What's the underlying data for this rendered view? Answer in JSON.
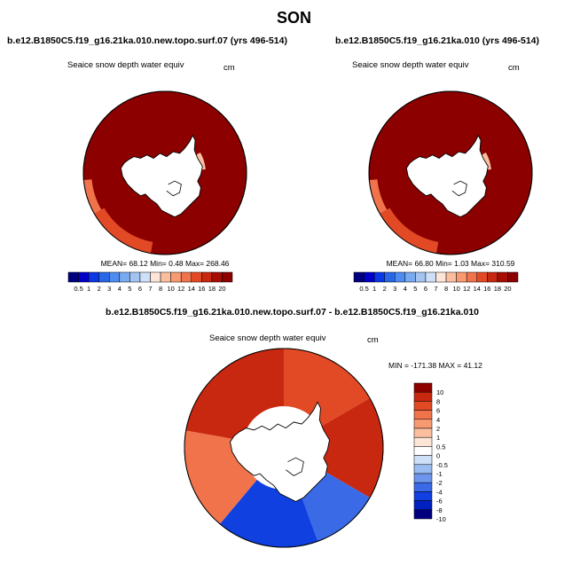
{
  "page": {
    "title": "SON"
  },
  "colors": {
    "land": "#ffffff",
    "outline": "#000000",
    "abs_scale": [
      "#00007f",
      "#0000c8",
      "#0a38e6",
      "#2766e6",
      "#4f8cf0",
      "#79aaf0",
      "#a3c4f0",
      "#cde0f7",
      "#fde5d8",
      "#fbbfa0",
      "#f79a72",
      "#f0734b",
      "#e24a26",
      "#c82810",
      "#a80d03",
      "#8c0000"
    ],
    "diff_scale": [
      "#00007f",
      "#0020bf",
      "#1040e0",
      "#3a6ae6",
      "#6d95eb",
      "#9bbcf0",
      "#cde0f7",
      "#ffffff",
      "#fde5d8",
      "#fbbfa0",
      "#f79a72",
      "#f0734b",
      "#e24a26",
      "#c82810",
      "#8c0000"
    ]
  },
  "panels": [
    {
      "id": "left",
      "case_title": "b.e12.B1850C5.f19_g16.21ka.010.new.topo.surf.07 (yrs 496-514)",
      "variable": "Seaice snow depth water equiv",
      "units": "cm",
      "stats": {
        "mean": "68.12",
        "min": "0.48",
        "max": "268.46",
        "text": "MEAN=  68.12  Min=   0.48  Max= 268.46"
      },
      "colorbar_labels": [
        "0.5",
        "1",
        "2",
        "3",
        "4",
        "5",
        "6",
        "7",
        "8",
        "10",
        "12",
        "14",
        "16",
        "18",
        "20"
      ]
    },
    {
      "id": "right",
      "case_title": "b.e12.B1850C5.f19_g16.21ka.010 (yrs 496-514)",
      "variable": "Seaice snow depth water equiv",
      "units": "cm",
      "stats": {
        "mean": "66.80",
        "min": "1.03",
        "max": "310.59",
        "text": "MEAN=  66.80  Min=   1.03  Max= 310.59"
      },
      "colorbar_labels": [
        "0.5",
        "1",
        "2",
        "3",
        "4",
        "5",
        "6",
        "7",
        "8",
        "10",
        "12",
        "14",
        "16",
        "18",
        "20"
      ]
    }
  ],
  "difference": {
    "title": "b.e12.B1850C5.f19_g16.21ka.010.new.topo.surf.07 - b.e12.B1850C5.f19_g16.21ka.010",
    "variable": "Seaice snow depth water equiv",
    "units": "cm",
    "stats": {
      "min": "-171.38",
      "max": "41.12",
      "text": "MIN = -171.38 MAX =  41.12"
    },
    "colorbar_labels": [
      "10",
      "8",
      "6",
      "4",
      "2",
      "1",
      "0.5",
      "0",
      "-0.5",
      "-1",
      "-2",
      "-4",
      "-6",
      "-8",
      "-10"
    ]
  },
  "chart_data": [
    {
      "type": "heatmap",
      "projection": "south-polar-stereographic",
      "title": "b.e12.B1850C5.f19_g16.21ka.010.new.topo.surf.07 (yrs 496-514)",
      "variable": "Seaice snow depth water equiv",
      "units": "cm",
      "mean": 68.12,
      "min": 0.48,
      "max": 268.46,
      "levels": [
        0.5,
        1,
        2,
        3,
        4,
        5,
        6,
        7,
        8,
        10,
        12,
        14,
        16,
        18,
        20
      ],
      "dominant_class": "> 20",
      "note_regions": [
        "outer edge near 180/Pacific sector lighter (12-18)",
        "Weddell/Peninsula coast small patches < 8"
      ]
    },
    {
      "type": "heatmap",
      "projection": "south-polar-stereographic",
      "title": "b.e12.B1850C5.f19_g16.21ka.010 (yrs 496-514)",
      "variable": "Seaice snow depth water equiv",
      "units": "cm",
      "mean": 66.8,
      "min": 1.03,
      "max": 310.59,
      "levels": [
        0.5,
        1,
        2,
        3,
        4,
        5,
        6,
        7,
        8,
        10,
        12,
        14,
        16,
        18,
        20
      ],
      "dominant_class": "> 20"
    },
    {
      "type": "heatmap",
      "projection": "south-polar-stereographic",
      "title": "b.e12.B1850C5.f19_g16.21ka.010.new.topo.surf.07 - b.e12.B1850C5.f19_g16.21ka.010",
      "variable": "Seaice snow depth water equiv",
      "units": "cm",
      "min": -171.38,
      "max": 41.12,
      "levels": [
        -10,
        -8,
        -6,
        -4,
        -2,
        -1,
        -0.5,
        0,
        0.5,
        1,
        2,
        4,
        6,
        8,
        10
      ],
      "sectors": [
        {
          "lon_from": -180,
          "lon_to": -120,
          "value": 6
        },
        {
          "lon_from": -120,
          "lon_to": -60,
          "value": 8
        },
        {
          "lon_from": -60,
          "lon_to": -20,
          "value": -4
        },
        {
          "lon_from": -20,
          "lon_to": 40,
          "value": -6
        },
        {
          "lon_from": 40,
          "lon_to": 100,
          "value": 4
        },
        {
          "lon_from": 100,
          "lon_to": 180,
          "value": 8
        }
      ]
    }
  ]
}
